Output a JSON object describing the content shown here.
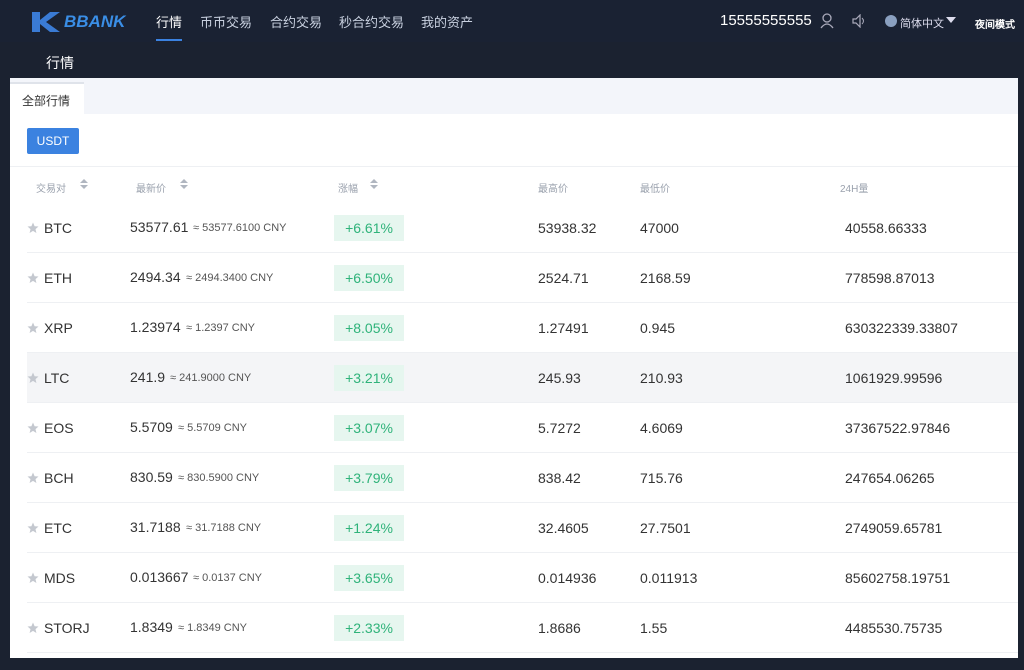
{
  "header": {
    "logo": "BBANK",
    "nav": [
      "行情",
      "币币交易",
      "合约交易",
      "秒合约交易",
      "我的资产"
    ],
    "account": "15555555555",
    "language": "简体中文",
    "night_mode": "夜间模式"
  },
  "subnav": {
    "title": "行情"
  },
  "tabs": [
    "全部行情"
  ],
  "filters": [
    "USDT"
  ],
  "table": {
    "columns": [
      "交易对",
      "最新价",
      "涨幅",
      "最高价",
      "最低价",
      "24H量"
    ],
    "rows": [
      [
        "BTC",
        "53577.61",
        "≈ 53577.6100 CNY",
        "+6.61%",
        "53938.32",
        "47000",
        "40558.66333"
      ],
      [
        "ETH",
        "2494.34",
        "≈ 2494.3400 CNY",
        "+6.50%",
        "2524.71",
        "2168.59",
        "778598.87013"
      ],
      [
        "XRP",
        "1.23974",
        "≈ 1.2397 CNY",
        "+8.05%",
        "1.27491",
        "0.945",
        "630322339.33807"
      ],
      [
        "LTC",
        "241.9",
        "≈ 241.9000 CNY",
        "+3.21%",
        "245.93",
        "210.93",
        "1061929.99596"
      ],
      [
        "EOS",
        "5.5709",
        "≈ 5.5709 CNY",
        "+3.07%",
        "5.7272",
        "4.6069",
        "37367522.97846"
      ],
      [
        "BCH",
        "830.59",
        "≈ 830.5900 CNY",
        "+3.79%",
        "838.42",
        "715.76",
        "247654.06265"
      ],
      [
        "ETC",
        "31.7188",
        "≈ 31.7188 CNY",
        "+1.24%",
        "32.4605",
        "27.7501",
        "2749059.65781"
      ],
      [
        "MDS",
        "0.013667",
        "≈ 0.0137 CNY",
        "+3.65%",
        "0.014936",
        "0.011913",
        "85602758.19751"
      ],
      [
        "STORJ",
        "1.8349",
        "≈ 1.8349 CNY",
        "+2.33%",
        "1.8686",
        "1.55",
        "4485530.75735"
      ]
    ]
  }
}
